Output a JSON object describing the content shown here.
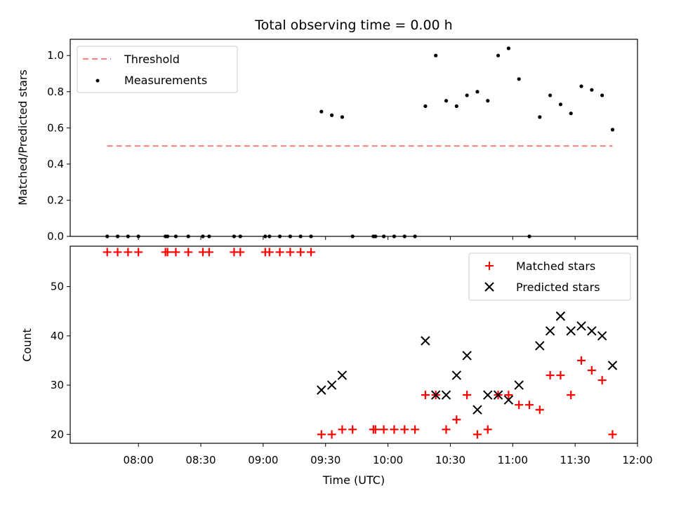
{
  "chart_data": {
    "type": "scatter",
    "title": "Total observing time = 0.00 h",
    "xlabel": "Time (UTC)",
    "x_ticks": [
      "08:00",
      "08:30",
      "09:00",
      "09:30",
      "10:00",
      "10:30",
      "11:00",
      "11:30",
      "12:00"
    ],
    "colors": {
      "threshold": "#ff7f7f",
      "measurements": "#000000",
      "matched": "#ff0000",
      "predicted": "#000000"
    },
    "top": {
      "ylabel": "Matched/Predicted stars",
      "ylim": [
        0,
        1.09
      ],
      "y_ticks": [
        "0.0",
        "0.2",
        "0.4",
        "0.6",
        "0.8",
        "1.0"
      ],
      "legend_position": "upper-left",
      "threshold": {
        "name": "Threshold",
        "value": 0.5,
        "x_range": [
          "07:45",
          "11:48"
        ]
      },
      "measurements": {
        "name": "Measurements",
        "points": [
          [
            "07:45",
            0.0
          ],
          [
            "07:50",
            0.0
          ],
          [
            "07:55",
            0.0
          ],
          [
            "08:00",
            0.0
          ],
          [
            "08:13",
            0.0
          ],
          [
            "08:14",
            0.0
          ],
          [
            "08:18",
            0.0
          ],
          [
            "08:24",
            0.0
          ],
          [
            "08:31",
            0.0
          ],
          [
            "08:34",
            0.0
          ],
          [
            "08:46",
            0.0
          ],
          [
            "08:49",
            0.0
          ],
          [
            "09:01",
            0.0
          ],
          [
            "09:03",
            0.0
          ],
          [
            "09:08",
            0.0
          ],
          [
            "09:13",
            0.0
          ],
          [
            "09:18",
            0.0
          ],
          [
            "09:23",
            0.0
          ],
          [
            "09:28",
            0.69
          ],
          [
            "09:33",
            0.67
          ],
          [
            "09:38",
            0.66
          ],
          [
            "09:43",
            0.0
          ],
          [
            "09:53",
            0.0
          ],
          [
            "09:54",
            0.0
          ],
          [
            "09:58",
            0.0
          ],
          [
            "10:03",
            0.0
          ],
          [
            "10:08",
            0.0
          ],
          [
            "10:13",
            0.0
          ],
          [
            "10:18",
            0.72
          ],
          [
            "10:23",
            1.0
          ],
          [
            "10:28",
            0.75
          ],
          [
            "10:33",
            0.72
          ],
          [
            "10:38",
            0.78
          ],
          [
            "10:43",
            0.8
          ],
          [
            "10:48",
            0.75
          ],
          [
            "10:53",
            1.0
          ],
          [
            "10:58",
            1.04
          ],
          [
            "11:03",
            0.87
          ],
          [
            "11:08",
            0.0
          ],
          [
            "11:13",
            0.66
          ],
          [
            "11:18",
            0.78
          ],
          [
            "11:23",
            0.73
          ],
          [
            "11:28",
            0.68
          ],
          [
            "11:33",
            0.83
          ],
          [
            "11:38",
            0.81
          ],
          [
            "11:43",
            0.78
          ],
          [
            "11:48",
            0.59
          ]
        ]
      }
    },
    "bottom": {
      "ylabel": "Count",
      "ylim": [
        18.2,
        58.2
      ],
      "y_ticks": [
        "20",
        "30",
        "40",
        "50"
      ],
      "legend_position": "upper-right",
      "matched": {
        "name": "Matched stars",
        "points": [
          [
            "07:45",
            57
          ],
          [
            "07:50",
            57
          ],
          [
            "07:55",
            57
          ],
          [
            "08:00",
            57
          ],
          [
            "08:13",
            57
          ],
          [
            "08:14",
            57
          ],
          [
            "08:18",
            57
          ],
          [
            "08:24",
            57
          ],
          [
            "08:31",
            57
          ],
          [
            "08:34",
            57
          ],
          [
            "08:46",
            57
          ],
          [
            "08:49",
            57
          ],
          [
            "09:01",
            57
          ],
          [
            "09:03",
            57
          ],
          [
            "09:08",
            57
          ],
          [
            "09:13",
            57
          ],
          [
            "09:18",
            57
          ],
          [
            "09:23",
            57
          ],
          [
            "09:28",
            20
          ],
          [
            "09:33",
            20
          ],
          [
            "09:38",
            21
          ],
          [
            "09:43",
            21
          ],
          [
            "09:53",
            21
          ],
          [
            "09:54",
            21
          ],
          [
            "09:58",
            21
          ],
          [
            "10:03",
            21
          ],
          [
            "10:08",
            21
          ],
          [
            "10:13",
            21
          ],
          [
            "10:18",
            28
          ],
          [
            "10:23",
            28
          ],
          [
            "10:28",
            21
          ],
          [
            "10:33",
            23
          ],
          [
            "10:38",
            28
          ],
          [
            "10:43",
            20
          ],
          [
            "10:48",
            21
          ],
          [
            "10:53",
            28
          ],
          [
            "10:58",
            28
          ],
          [
            "11:03",
            26
          ],
          [
            "11:08",
            26
          ],
          [
            "11:13",
            25
          ],
          [
            "11:18",
            32
          ],
          [
            "11:23",
            32
          ],
          [
            "11:28",
            28
          ],
          [
            "11:33",
            35
          ],
          [
            "11:38",
            33
          ],
          [
            "11:43",
            31
          ],
          [
            "11:48",
            20
          ]
        ]
      },
      "predicted": {
        "name": "Predicted stars",
        "points": [
          [
            "09:28",
            29
          ],
          [
            "09:33",
            30
          ],
          [
            "09:38",
            32
          ],
          [
            "10:18",
            39
          ],
          [
            "10:23",
            28
          ],
          [
            "10:28",
            28
          ],
          [
            "10:33",
            32
          ],
          [
            "10:38",
            36
          ],
          [
            "10:43",
            25
          ],
          [
            "10:48",
            28
          ],
          [
            "10:53",
            28
          ],
          [
            "10:58",
            27
          ],
          [
            "11:03",
            30
          ],
          [
            "11:13",
            38
          ],
          [
            "11:18",
            41
          ],
          [
            "11:23",
            44
          ],
          [
            "11:28",
            41
          ],
          [
            "11:33",
            42
          ],
          [
            "11:38",
            41
          ],
          [
            "11:43",
            40
          ],
          [
            "11:48",
            34
          ]
        ]
      }
    }
  }
}
